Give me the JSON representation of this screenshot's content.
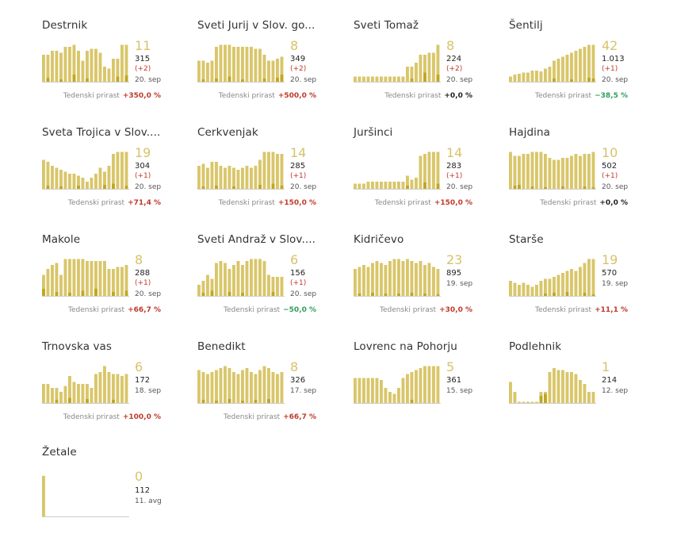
{
  "growth_label": "Tedenski prirast",
  "colors": {
    "bar": "#d9c66a",
    "new": "#c2a71e",
    "positive": "#c0392b",
    "negative": "#2e9e5b",
    "zero": "#222222"
  },
  "municipalities": [
    {
      "name": "Destrnik",
      "active": "11",
      "total": "315",
      "delta": "(+2)",
      "date": "20. sep",
      "growth": "+350,0 %",
      "sign": "pos",
      "bars": [
        0.7,
        0.7,
        0.8,
        0.8,
        0.75,
        0.9,
        0.9,
        0.95,
        0.8,
        0.55,
        0.8,
        0.85,
        0.85,
        0.75,
        0.4,
        0.35,
        0.6,
        0.6,
        0.95,
        0.95
      ],
      "new": [
        0,
        0.12,
        0,
        0,
        0.08,
        0,
        0,
        0.2,
        0,
        0,
        0.1,
        0,
        0,
        0,
        0,
        0,
        0,
        0.15,
        0,
        0.18
      ]
    },
    {
      "name": "Sveti Jurij v Slov. go...",
      "active": "8",
      "total": "349",
      "delta": "(+2)",
      "date": "20. sep",
      "growth": "+500,0 %",
      "sign": "pos",
      "bars": [
        0.55,
        0.55,
        0.5,
        0.55,
        0.9,
        0.95,
        0.95,
        0.95,
        0.9,
        0.9,
        0.9,
        0.9,
        0.9,
        0.85,
        0.85,
        0.7,
        0.55,
        0.55,
        0.6,
        0.65
      ],
      "new": [
        0,
        0.08,
        0,
        0,
        0.1,
        0,
        0,
        0.15,
        0,
        0,
        0.08,
        0,
        0,
        0,
        0,
        0.1,
        0,
        0,
        0.12,
        0.2
      ]
    },
    {
      "name": "Sveti Tomaž",
      "active": "8",
      "total": "224",
      "delta": "(+2)",
      "date": "20. sep",
      "growth": "+0,0 %",
      "sign": "zero",
      "bars": [
        0.15,
        0.15,
        0.15,
        0.15,
        0.15,
        0.15,
        0.15,
        0.15,
        0.15,
        0.15,
        0.15,
        0.15,
        0.4,
        0.4,
        0.5,
        0.7,
        0.7,
        0.75,
        0.75,
        0.95
      ],
      "new": [
        0,
        0,
        0,
        0,
        0,
        0,
        0,
        0,
        0,
        0,
        0,
        0,
        0,
        0.1,
        0,
        0,
        0.25,
        0,
        0,
        0.2
      ]
    },
    {
      "name": "Šentilj",
      "active": "42",
      "total": "1.013",
      "delta": "(+1)",
      "date": "20. sep",
      "growth": "−38,5 %",
      "sign": "neg",
      "bars": [
        0.15,
        0.2,
        0.22,
        0.25,
        0.25,
        0.3,
        0.3,
        0.28,
        0.35,
        0.4,
        0.55,
        0.6,
        0.65,
        0.7,
        0.75,
        0.8,
        0.85,
        0.9,
        0.95,
        0.95
      ],
      "new": [
        0,
        0,
        0,
        0,
        0,
        0,
        0,
        0,
        0,
        0,
        0.1,
        0,
        0,
        0,
        0.08,
        0,
        0,
        0,
        0.12,
        0.1
      ]
    },
    {
      "name": "Sveta Trojica v Slov....",
      "active": "19",
      "total": "304",
      "delta": "(+1)",
      "date": "20. sep",
      "growth": "+71,4 %",
      "sign": "pos",
      "bars": [
        0.75,
        0.7,
        0.6,
        0.55,
        0.5,
        0.45,
        0.4,
        0.4,
        0.35,
        0.3,
        0.2,
        0.3,
        0.4,
        0.55,
        0.45,
        0.6,
        0.9,
        0.95,
        0.95,
        0.95
      ],
      "new": [
        0,
        0.1,
        0,
        0,
        0.08,
        0,
        0,
        0,
        0.1,
        0,
        0,
        0,
        0,
        0,
        0.12,
        0,
        0.15,
        0,
        0,
        0.1
      ]
    },
    {
      "name": "Cerkvenjak",
      "active": "14",
      "total": "285",
      "delta": "(+1)",
      "date": "20. sep",
      "growth": "+150,0 %",
      "sign": "pos",
      "bars": [
        0.6,
        0.65,
        0.55,
        0.7,
        0.7,
        0.6,
        0.55,
        0.6,
        0.55,
        0.5,
        0.55,
        0.6,
        0.55,
        0.6,
        0.75,
        0.95,
        0.95,
        0.95,
        0.9,
        0.9
      ],
      "new": [
        0,
        0.08,
        0,
        0,
        0.1,
        0,
        0,
        0,
        0.08,
        0,
        0,
        0,
        0,
        0,
        0.12,
        0,
        0,
        0.15,
        0,
        0.1
      ]
    },
    {
      "name": "Juršinci",
      "active": "14",
      "total": "283",
      "delta": "(+1)",
      "date": "20. sep",
      "growth": "+150,0 %",
      "sign": "pos",
      "bars": [
        0.15,
        0.15,
        0.15,
        0.2,
        0.2,
        0.2,
        0.2,
        0.2,
        0.2,
        0.2,
        0.2,
        0.2,
        0.35,
        0.25,
        0.3,
        0.85,
        0.9,
        0.95,
        0.95,
        0.95
      ],
      "new": [
        0,
        0,
        0,
        0,
        0,
        0,
        0,
        0,
        0,
        0,
        0,
        0,
        0.1,
        0,
        0,
        0,
        0.18,
        0,
        0,
        0.15
      ]
    },
    {
      "name": "Hajdina",
      "active": "10",
      "total": "502",
      "delta": "(+1)",
      "date": "20. sep",
      "growth": "+0,0 %",
      "sign": "zero",
      "bars": [
        0.95,
        0.85,
        0.85,
        0.9,
        0.9,
        0.95,
        0.95,
        0.95,
        0.9,
        0.8,
        0.75,
        0.75,
        0.8,
        0.8,
        0.85,
        0.9,
        0.85,
        0.9,
        0.9,
        0.95
      ],
      "new": [
        0,
        0.1,
        0.12,
        0,
        0,
        0.08,
        0,
        0,
        0.06,
        0,
        0,
        0,
        0.08,
        0,
        0,
        0,
        0,
        0.08,
        0,
        0.06
      ]
    },
    {
      "name": "Makole",
      "active": "8",
      "total": "288",
      "delta": "(+1)",
      "date": "20. sep",
      "growth": "+66,7 %",
      "sign": "pos",
      "bars": [
        0.55,
        0.7,
        0.8,
        0.85,
        0.55,
        0.95,
        0.95,
        0.95,
        0.95,
        0.95,
        0.9,
        0.9,
        0.9,
        0.9,
        0.9,
        0.7,
        0.7,
        0.75,
        0.75,
        0.8
      ],
      "new": [
        0.2,
        0,
        0,
        0.12,
        0,
        0,
        0.1,
        0,
        0,
        0.15,
        0,
        0,
        0.2,
        0,
        0,
        0,
        0.12,
        0,
        0,
        0.15
      ]
    },
    {
      "name": "Sveti Andraž v Slov....",
      "active": "6",
      "total": "156",
      "delta": "(+1)",
      "date": "20. sep",
      "growth": "−50,0 %",
      "sign": "neg",
      "bars": [
        0.3,
        0.4,
        0.55,
        0.45,
        0.85,
        0.9,
        0.85,
        0.7,
        0.8,
        0.9,
        0.8,
        0.9,
        0.95,
        0.95,
        0.95,
        0.9,
        0.55,
        0.5,
        0.5,
        0.5
      ],
      "new": [
        0,
        0.1,
        0,
        0.15,
        0,
        0,
        0,
        0.12,
        0,
        0,
        0.1,
        0,
        0,
        0,
        0,
        0,
        0,
        0.12,
        0,
        0
      ]
    },
    {
      "name": "Kidričevo",
      "active": "23",
      "total": "895",
      "delta": "",
      "date": "19. sep",
      "growth": "+30,0 %",
      "sign": "pos",
      "bars": [
        0.7,
        0.75,
        0.8,
        0.75,
        0.85,
        0.9,
        0.85,
        0.8,
        0.9,
        0.95,
        0.95,
        0.9,
        0.95,
        0.9,
        0.85,
        0.9,
        0.8,
        0.85,
        0.75,
        0.7
      ],
      "new": [
        0,
        0.08,
        0,
        0,
        0.1,
        0,
        0,
        0.08,
        0,
        0,
        0.08,
        0,
        0,
        0.1,
        0,
        0,
        0.08,
        0,
        0,
        0.06
      ]
    },
    {
      "name": "Starše",
      "active": "19",
      "total": "570",
      "delta": "",
      "date": "19. sep",
      "growth": "+11,1 %",
      "sign": "pos",
      "bars": [
        0.4,
        0.35,
        0.3,
        0.35,
        0.3,
        0.25,
        0.3,
        0.4,
        0.45,
        0.45,
        0.5,
        0.55,
        0.6,
        0.65,
        0.7,
        0.65,
        0.75,
        0.85,
        0.95,
        0.95
      ],
      "new": [
        0,
        0,
        0,
        0,
        0,
        0,
        0,
        0,
        0.08,
        0,
        0.1,
        0,
        0,
        0.12,
        0,
        0,
        0,
        0.1,
        0,
        0.06
      ]
    },
    {
      "name": "Trnovska vas",
      "active": "6",
      "total": "172",
      "delta": "",
      "date": "18. sep",
      "growth": "+100,0 %",
      "sign": "pos",
      "bars": [
        0.5,
        0.5,
        0.4,
        0.4,
        0.3,
        0.45,
        0.7,
        0.55,
        0.5,
        0.5,
        0.5,
        0.4,
        0.75,
        0.8,
        0.95,
        0.8,
        0.75,
        0.75,
        0.7,
        0.75
      ],
      "new": [
        0,
        0,
        0,
        0.1,
        0,
        0,
        0.15,
        0,
        0,
        0,
        0.12,
        0,
        0,
        0,
        0,
        0,
        0.1,
        0,
        0,
        0
      ]
    },
    {
      "name": "Benedikt",
      "active": "8",
      "total": "326",
      "delta": "",
      "date": "17. sep",
      "growth": "+66,7 %",
      "sign": "pos",
      "bars": [
        0.85,
        0.8,
        0.75,
        0.8,
        0.85,
        0.9,
        0.95,
        0.9,
        0.8,
        0.75,
        0.85,
        0.9,
        0.8,
        0.75,
        0.85,
        0.95,
        0.9,
        0.8,
        0.75,
        0.8
      ],
      "new": [
        0,
        0.1,
        0,
        0,
        0.08,
        0,
        0,
        0.12,
        0,
        0,
        0.08,
        0,
        0,
        0.1,
        0,
        0,
        0.12,
        0,
        0,
        0
      ]
    },
    {
      "name": "Lovrenc na Pohorju",
      "active": "5",
      "total": "361",
      "delta": "",
      "date": "15. sep",
      "growth": "",
      "sign": "zero",
      "bars": [
        0.65,
        0.65,
        0.65,
        0.65,
        0.65,
        0.65,
        0.6,
        0.4,
        0.3,
        0.25,
        0.4,
        0.65,
        0.75,
        0.8,
        0.85,
        0.9,
        0.95,
        0.95,
        0.95,
        0.95
      ],
      "new": [
        0,
        0,
        0,
        0,
        0,
        0,
        0,
        0,
        0,
        0,
        0,
        0,
        0,
        0.1,
        0,
        0,
        0,
        0,
        0,
        0
      ]
    },
    {
      "name": "Podlehnik",
      "active": "1",
      "total": "214",
      "delta": "",
      "date": "12. sep",
      "growth": "",
      "sign": "zero",
      "bars": [
        0.55,
        0.3,
        0.05,
        0.05,
        0.05,
        0.05,
        0.05,
        0.3,
        0.3,
        0.8,
        0.9,
        0.85,
        0.85,
        0.8,
        0.8,
        0.75,
        0.6,
        0.5,
        0.3,
        0.3
      ],
      "new": [
        0,
        0,
        0,
        0,
        0,
        0,
        0,
        0.2,
        0.25,
        0,
        0,
        0,
        0,
        0,
        0,
        0,
        0,
        0,
        0,
        0
      ]
    },
    {
      "name": "Žetale",
      "active": "0",
      "total": "112",
      "delta": "",
      "date": "11. avg",
      "growth": "",
      "sign": "zero",
      "bars": [
        0.95,
        0,
        0,
        0,
        0,
        0,
        0,
        0,
        0,
        0,
        0,
        0,
        0,
        0,
        0,
        0,
        0,
        0,
        0,
        0
      ],
      "new": [
        0,
        0,
        0,
        0,
        0,
        0,
        0,
        0,
        0,
        0,
        0,
        0,
        0,
        0,
        0,
        0,
        0,
        0,
        0,
        0
      ]
    }
  ]
}
